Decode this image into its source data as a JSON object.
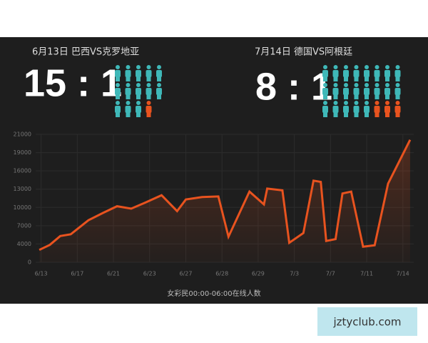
{
  "matches": [
    {
      "caption": "6月13日 巴西VS克罗地亚",
      "score": "15 : 1"
    },
    {
      "caption": "7月14日 德国VS阿根廷",
      "score": "8 : 1"
    }
  ],
  "chart_data": {
    "type": "line",
    "x_label": "女彩民00:00-06:00在线人数",
    "color": "#e8531f",
    "grid": true,
    "x": [
      -0.05,
      0.24,
      0.53,
      0.82,
      1.31,
      1.71,
      2.1,
      2.49,
      2.88,
      3.33,
      3.76,
      4.0,
      4.45,
      4.9,
      5.18,
      5.76,
      6.16,
      6.25,
      6.67,
      6.86,
      7.25,
      7.53,
      7.73,
      7.88,
      8.14,
      8.33,
      8.57,
      8.9,
      9.22,
      9.59,
      10.2
    ],
    "values": [
      2700,
      3800,
      5300,
      5600,
      7900,
      9100,
      10200,
      9800,
      10800,
      12000,
      9400,
      11300,
      11700,
      11800,
      5200,
      12600,
      10500,
      13100,
      12800,
      4200,
      5800,
      14400,
      14200,
      4500,
      4800,
      12300,
      12600,
      3400,
      3700,
      13900,
      20400
    ],
    "xlim": [
      -0.15,
      10.3
    ],
    "xticks": [
      {
        "value": 0,
        "label": "6/13"
      },
      {
        "value": 1,
        "label": "6/17"
      },
      {
        "value": 2,
        "label": "6/21"
      },
      {
        "value": 3,
        "label": "6/23"
      },
      {
        "value": 4,
        "label": "6/27"
      },
      {
        "value": 5,
        "label": "6/28"
      },
      {
        "value": 6,
        "label": "6/29"
      },
      {
        "value": 7,
        "label": "7/3"
      },
      {
        "value": 8,
        "label": "7/7"
      },
      {
        "value": 9,
        "label": "7/11"
      },
      {
        "value": 10,
        "label": "7/14"
      }
    ],
    "ylim": [
      0,
      21000
    ],
    "yticks": [
      0,
      4000,
      7000,
      10000,
      13000,
      16000,
      19000,
      21000
    ]
  },
  "watermark": "jztyclub.com"
}
